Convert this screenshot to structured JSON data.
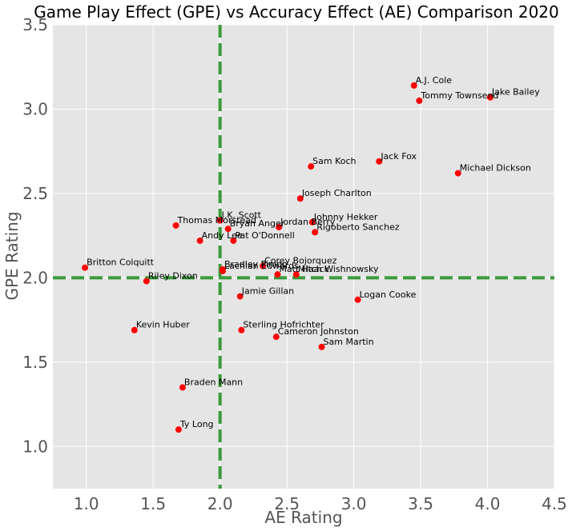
{
  "chart_data": {
    "type": "scatter",
    "title": "Game Play Effect (GPE) vs Accuracy Effect (AE) Comparison 2020",
    "xlabel": "AE Rating",
    "ylabel": "GPE Rating",
    "xlim": [
      0.75,
      4.5
    ],
    "ylim": [
      0.75,
      3.5
    ],
    "xticks": [
      "1.0",
      "1.5",
      "2.0",
      "2.5",
      "3.0",
      "3.5",
      "4.0",
      "4.5"
    ],
    "yticks": [
      "1.0",
      "1.5",
      "2.0",
      "2.5",
      "3.0",
      "3.5"
    ],
    "reference_lines": {
      "x": 2.0,
      "y": 2.0,
      "color": "#3a9a3a",
      "style": "dashed"
    },
    "point_color": "#ff0000",
    "background": "#e5e5e5",
    "grid": true,
    "points": [
      {
        "label": "A.J. Cole",
        "x": 3.45,
        "y": 3.14
      },
      {
        "label": "Jake Bailey",
        "x": 4.02,
        "y": 3.07
      },
      {
        "label": "Tommy Townsend",
        "x": 3.49,
        "y": 3.05
      },
      {
        "label": "Jack Fox",
        "x": 3.19,
        "y": 2.69
      },
      {
        "label": "Sam Koch",
        "x": 2.68,
        "y": 2.66
      },
      {
        "label": "Michael Dickson",
        "x": 3.78,
        "y": 2.62
      },
      {
        "label": "Joseph Charlton",
        "x": 2.6,
        "y": 2.47
      },
      {
        "label": "J.K. Scott",
        "x": 2.0,
        "y": 2.34
      },
      {
        "label": "Johnny Hekker",
        "x": 2.69,
        "y": 2.33
      },
      {
        "label": "Thomas Morstead",
        "x": 1.67,
        "y": 2.31
      },
      {
        "label": "Bryan Anger",
        "x": 2.06,
        "y": 2.29
      },
      {
        "label": "Jordan Berry",
        "x": 2.44,
        "y": 2.3
      },
      {
        "label": "Rigoberto Sanchez",
        "x": 2.71,
        "y": 2.27
      },
      {
        "label": "Andy Lee",
        "x": 1.85,
        "y": 2.22
      },
      {
        "label": "Pat O'Donnell",
        "x": 2.1,
        "y": 2.22
      },
      {
        "label": "Britton Colquitt",
        "x": 0.99,
        "y": 2.06
      },
      {
        "label": "Corey Bojorquez",
        "x": 2.32,
        "y": 2.07
      },
      {
        "label": "Bradley Pinion",
        "x": 2.02,
        "y": 2.05
      },
      {
        "label": "Lachlan Edwards",
        "x": 2.02,
        "y": 2.04
      },
      {
        "label": "Matt Haack",
        "x": 2.43,
        "y": 2.02
      },
      {
        "label": "Mitch Wishnowsky",
        "x": 2.57,
        "y": 2.02
      },
      {
        "label": "Riley Dixon",
        "x": 1.45,
        "y": 1.98
      },
      {
        "label": "Jamie Gillan",
        "x": 2.15,
        "y": 1.89
      },
      {
        "label": "Logan Cooke",
        "x": 3.03,
        "y": 1.87
      },
      {
        "label": "Kevin Huber",
        "x": 1.36,
        "y": 1.69
      },
      {
        "label": "Sterling Hofrichter",
        "x": 2.16,
        "y": 1.69
      },
      {
        "label": "Cameron Johnston",
        "x": 2.42,
        "y": 1.65
      },
      {
        "label": "Sam Martin",
        "x": 2.76,
        "y": 1.59
      },
      {
        "label": "Braden Mann",
        "x": 1.72,
        "y": 1.35
      },
      {
        "label": "Ty Long",
        "x": 1.69,
        "y": 1.1
      }
    ]
  }
}
